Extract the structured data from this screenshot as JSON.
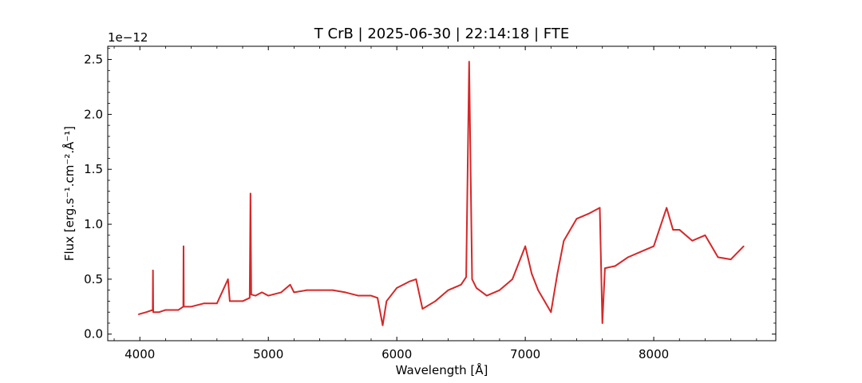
{
  "chart_data": {
    "type": "line",
    "title": "T CrB | 2025-06-30 | 22:14:18 | FTE",
    "xlabel": "Wavelength [Å]",
    "ylabel": "Flux [erg.s⁻¹.cm⁻².Å⁻¹]",
    "offset_label": "1e−12",
    "xlim": [
      3750,
      8950
    ],
    "ylim": [
      -0.06,
      2.62
    ],
    "x_ticks": [
      4000,
      5000,
      6000,
      7000,
      8000
    ],
    "x_tick_labels": [
      "4000",
      "5000",
      "6000",
      "7000",
      "8000"
    ],
    "y_ticks": [
      0.0,
      0.5,
      1.0,
      1.5,
      2.0,
      2.5
    ],
    "y_tick_labels": [
      "0.0",
      "0.5",
      "1.0",
      "1.5",
      "2.0",
      "2.5"
    ],
    "grid": false,
    "series": [
      {
        "color": "#d62728",
        "x": [
          3990,
          4050,
          4100,
          4102,
          4104,
          4150,
          4200,
          4300,
          4338,
          4340,
          4342,
          4400,
          4500,
          4600,
          4686,
          4700,
          4800,
          4855,
          4861,
          4867,
          4900,
          4950,
          5000,
          5100,
          5170,
          5200,
          5300,
          5400,
          5500,
          5600,
          5700,
          5800,
          5850,
          5890,
          5920,
          6000,
          6100,
          6150,
          6200,
          6300,
          6400,
          6500,
          6540,
          6563,
          6586,
          6620,
          6700,
          6800,
          6900,
          7000,
          7050,
          7100,
          7150,
          7200,
          7250,
          7300,
          7400,
          7500,
          7580,
          7600,
          7620,
          7700,
          7800,
          7900,
          8000,
          8100,
          8150,
          8200,
          8300,
          8400,
          8500,
          8600,
          8700
        ],
        "y": [
          0.18,
          0.2,
          0.22,
          0.58,
          0.2,
          0.2,
          0.22,
          0.22,
          0.25,
          0.8,
          0.25,
          0.25,
          0.28,
          0.28,
          0.5,
          0.3,
          0.3,
          0.33,
          1.28,
          0.36,
          0.35,
          0.38,
          0.35,
          0.38,
          0.45,
          0.38,
          0.4,
          0.4,
          0.4,
          0.38,
          0.35,
          0.35,
          0.33,
          0.08,
          0.3,
          0.42,
          0.48,
          0.5,
          0.23,
          0.3,
          0.4,
          0.45,
          0.52,
          2.48,
          0.5,
          0.42,
          0.35,
          0.4,
          0.5,
          0.8,
          0.55,
          0.4,
          0.3,
          0.2,
          0.55,
          0.85,
          1.05,
          1.1,
          1.15,
          0.1,
          0.6,
          0.62,
          0.7,
          0.75,
          0.8,
          1.15,
          0.95,
          0.95,
          0.85,
          0.9,
          0.7,
          0.68,
          0.8
        ]
      }
    ]
  }
}
